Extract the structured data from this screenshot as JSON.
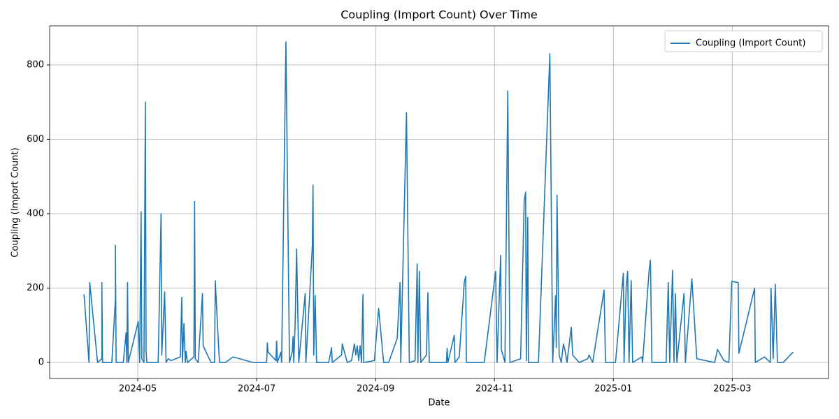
{
  "chart_data": {
    "type": "line",
    "title": "Coupling (Import Count) Over Time",
    "x_label": "Date",
    "y_label": "Coupling (Import Count)",
    "x": [
      2024.258,
      2024.265,
      2024.266,
      2024.277,
      2024.283,
      2024.283,
      2024.284,
      2024.297,
      2024.302,
      2024.302,
      2024.303,
      2024.313,
      2024.317,
      2024.318,
      2024.319,
      2024.32,
      2024.334,
      2024.336,
      2024.338,
      2024.339,
      2024.342,
      2024.344,
      2024.345,
      2024.346,
      2024.362,
      2024.366,
      2024.367,
      2024.371,
      2024.373,
      2024.376,
      2024.38,
      2024.393,
      2024.395,
      2024.396,
      2024.398,
      2024.4,
      2024.401,
      2024.403,
      2024.412,
      2024.413,
      2024.414,
      2024.418,
      2024.424,
      2024.425,
      2024.436,
      2024.441,
      2024.442,
      2024.447,
      2024.448,
      2024.456,
      2024.467,
      2024.495,
      2024.514,
      2024.515,
      2024.516,
      2024.527,
      2024.528,
      2024.529,
      2024.534,
      2024.535,
      2024.541,
      2024.546,
      2024.55,
      2024.551,
      2024.552,
      2024.554,
      2024.556,
      2024.559,
      2024.568,
      2024.569,
      2024.578,
      2024.579,
      2024.58,
      2024.582,
      2024.584,
      2024.601,
      2024.605,
      2024.606,
      2024.619,
      2024.62,
      2024.627,
      2024.633,
      2024.637,
      2024.639,
      2024.641,
      2024.643,
      2024.645,
      2024.647,
      2024.649,
      2024.65,
      2024.665,
      2024.671,
      2024.678,
      2024.685,
      2024.697,
      2024.701,
      2024.702,
      2024.71,
      2024.714,
      2024.722,
      2024.725,
      2024.726,
      2024.728,
      2024.73,
      2024.738,
      2024.74,
      2024.742,
      2024.766,
      2024.767,
      2024.768,
      2024.777,
      2024.778,
      2024.784,
      2024.791,
      2024.793,
      2024.794,
      2024.819,
      2024.835,
      2024.837,
      2024.842,
      2024.843,
      2024.848,
      2024.852,
      2024.855,
      2024.87,
      2024.875,
      2024.877,
      2024.878,
      2024.88,
      2024.881,
      2024.895,
      2024.911,
      2024.915,
      2024.919,
      2024.92,
      2024.921,
      2024.924,
      2024.927,
      2024.93,
      2024.932,
      2024.935,
      2024.941,
      2024.943,
      2024.952,
      2024.964,
      2024.966,
      2024.971,
      2024.987,
      2024.989,
      2025.003,
      2025.014,
      2025.015,
      2025.018,
      2025.02,
      2025.022,
      2025.025,
      2025.027,
      2025.04,
      2025.041,
      2025.05,
      2025.052,
      2025.054,
      2025.074,
      2025.077,
      2025.079,
      2025.083,
      2025.085,
      2025.087,
      2025.089,
      2025.099,
      2025.101,
      2025.11,
      2025.117,
      2025.142,
      2025.146,
      2025.155,
      2025.162,
      2025.163,
      2025.166,
      2025.175,
      2025.176,
      2025.198,
      2025.199,
      2025.212,
      2025.22,
      2025.221,
      2025.224,
      2025.227,
      2025.23,
      2025.238,
      2025.252
    ],
    "series": [
      {
        "name": "Coupling (Import Count)",
        "color": "#1f77b4",
        "values": [
          183,
          0,
          215,
          0,
          10,
          215,
          0,
          0,
          170,
          315,
          0,
          0,
          80,
          0,
          215,
          0,
          110,
          0,
          405,
          10,
          0,
          700,
          30,
          0,
          0,
          400,
          20,
          190,
          0,
          10,
          5,
          15,
          175,
          0,
          105,
          0,
          30,
          0,
          15,
          433,
          10,
          0,
          185,
          45,
          0,
          0,
          220,
          30,
          0,
          0,
          15,
          0,
          0,
          53,
          28,
          5,
          58,
          0,
          28,
          0,
          862,
          0,
          30,
          70,
          0,
          110,
          305,
          0,
          185,
          0,
          310,
          477,
          20,
          180,
          0,
          0,
          40,
          0,
          20,
          50,
          0,
          5,
          50,
          20,
          45,
          5,
          45,
          0,
          183,
          0,
          5,
          145,
          0,
          0,
          65,
          215,
          0,
          672,
          0,
          5,
          265,
          0,
          245,
          0,
          20,
          188,
          0,
          0,
          38,
          0,
          73,
          0,
          15,
          215,
          232,
          0,
          0,
          245,
          0,
          288,
          35,
          0,
          730,
          0,
          10,
          435,
          458,
          5,
          390,
          0,
          0,
          830,
          0,
          180,
          40,
          450,
          20,
          0,
          50,
          35,
          0,
          95,
          20,
          0,
          10,
          20,
          0,
          195,
          0,
          0,
          240,
          0,
          205,
          245,
          0,
          220,
          0,
          15,
          0,
          245,
          275,
          0,
          0,
          215,
          0,
          248,
          0,
          185,
          0,
          185,
          0,
          225,
          10,
          0,
          35,
          5,
          0,
          55,
          218,
          215,
          25,
          200,
          0,
          15,
          0,
          200,
          10,
          210,
          0,
          0,
          28
        ]
      }
    ],
    "xlim": [
      2024.2098,
      2025.3016
    ],
    "ylim": [
      -43,
      905
    ],
    "xticks": [
      {
        "value": 2024.3333,
        "label": "2024-05"
      },
      {
        "value": 2024.5,
        "label": "2024-07"
      },
      {
        "value": 2024.6667,
        "label": "2024-09"
      },
      {
        "value": 2024.8333,
        "label": "2024-11"
      },
      {
        "value": 2025.0,
        "label": "2025-01"
      },
      {
        "value": 2025.1667,
        "label": "2025-03"
      }
    ],
    "yticks": [
      0,
      200,
      400,
      600,
      800
    ],
    "grid": true,
    "legend": "upper right"
  }
}
